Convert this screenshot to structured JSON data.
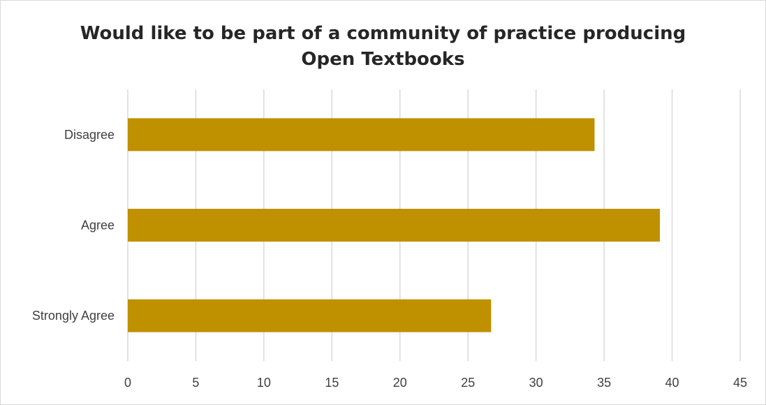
{
  "chart_data": {
    "type": "bar",
    "orientation": "horizontal",
    "title_lines": [
      "Would like to be part of a community of practice producing",
      "Open Textbooks"
    ],
    "categories": [
      "Disagree",
      "Agree",
      "Strongly Agree"
    ],
    "values": [
      34.3,
      39.1,
      26.7
    ],
    "xlim": [
      0,
      45
    ],
    "xticks": [
      "0",
      "5",
      "10",
      "15",
      "20",
      "25",
      "30",
      "35",
      "40",
      "45"
    ],
    "xlabel": "",
    "ylabel": "",
    "grid": "vertical",
    "legend": "none",
    "bar_color": "#BF9000",
    "grid_color": "#D9D9D9"
  }
}
